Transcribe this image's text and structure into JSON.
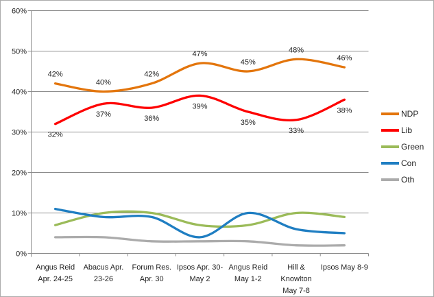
{
  "window": {
    "background": "#ffffff",
    "border_color": "#ababab"
  },
  "chart_data": {
    "type": "line",
    "smooth": true,
    "title": "",
    "xlabel": "",
    "ylabel": "",
    "ylim": [
      0,
      60
    ],
    "ytick_step": 10,
    "ytick_labels": [
      "0%",
      "10%",
      "20%",
      "30%",
      "40%",
      "50%",
      "60%"
    ],
    "grid": "horizontal",
    "legend_position": "right",
    "axis_color": "#8c8c8c",
    "label_color": "#1f1f1f",
    "categories": [
      "Angus Reid Apr. 24-25",
      "Abacus Apr. 23-26",
      "Forum Res. Apr. 30",
      "Ipsos Apr. 30- May 2",
      "Angus Reid May 1-2",
      "Hill & Knowlton May 7-8",
      "Ipsos May 8-9"
    ],
    "category_label_lines": [
      [
        "Angus Reid",
        "Apr. 24-25"
      ],
      [
        "Abacus Apr.",
        "23-26"
      ],
      [
        "Forum Res.",
        "Apr. 30"
      ],
      [
        "Ipsos Apr. 30-",
        "May 2"
      ],
      [
        "Angus Reid",
        "May 1-2"
      ],
      [
        "Hill &",
        "Knowlton",
        "May 7-8"
      ],
      [
        "Ipsos May 8-9"
      ]
    ],
    "series": [
      {
        "name": "NDP",
        "color": "#e3750c",
        "values": [
          42,
          40,
          42,
          47,
          45,
          48,
          46
        ],
        "data_labels": "above",
        "data_label_texts": [
          "42%",
          "40%",
          "42%",
          "47%",
          "45%",
          "48%",
          "46%"
        ]
      },
      {
        "name": "Lib",
        "color": "#fe0000",
        "values": [
          32,
          37,
          36,
          39,
          35,
          33,
          38
        ],
        "data_labels": "below",
        "data_label_texts": [
          "32%",
          "37%",
          "36%",
          "39%",
          "35%",
          "33%",
          "38%"
        ]
      },
      {
        "name": "Green",
        "color": "#9bbb59",
        "values": [
          7,
          10,
          10,
          7,
          7,
          10,
          9
        ],
        "data_labels": "none"
      },
      {
        "name": "Con",
        "color": "#1f7ec2",
        "values": [
          11,
          9,
          9,
          4,
          10,
          6,
          5
        ],
        "data_labels": "none"
      },
      {
        "name": "Oth",
        "color": "#ababab",
        "values": [
          4,
          4,
          3,
          3,
          3,
          2,
          2
        ],
        "data_labels": "none"
      }
    ]
  }
}
